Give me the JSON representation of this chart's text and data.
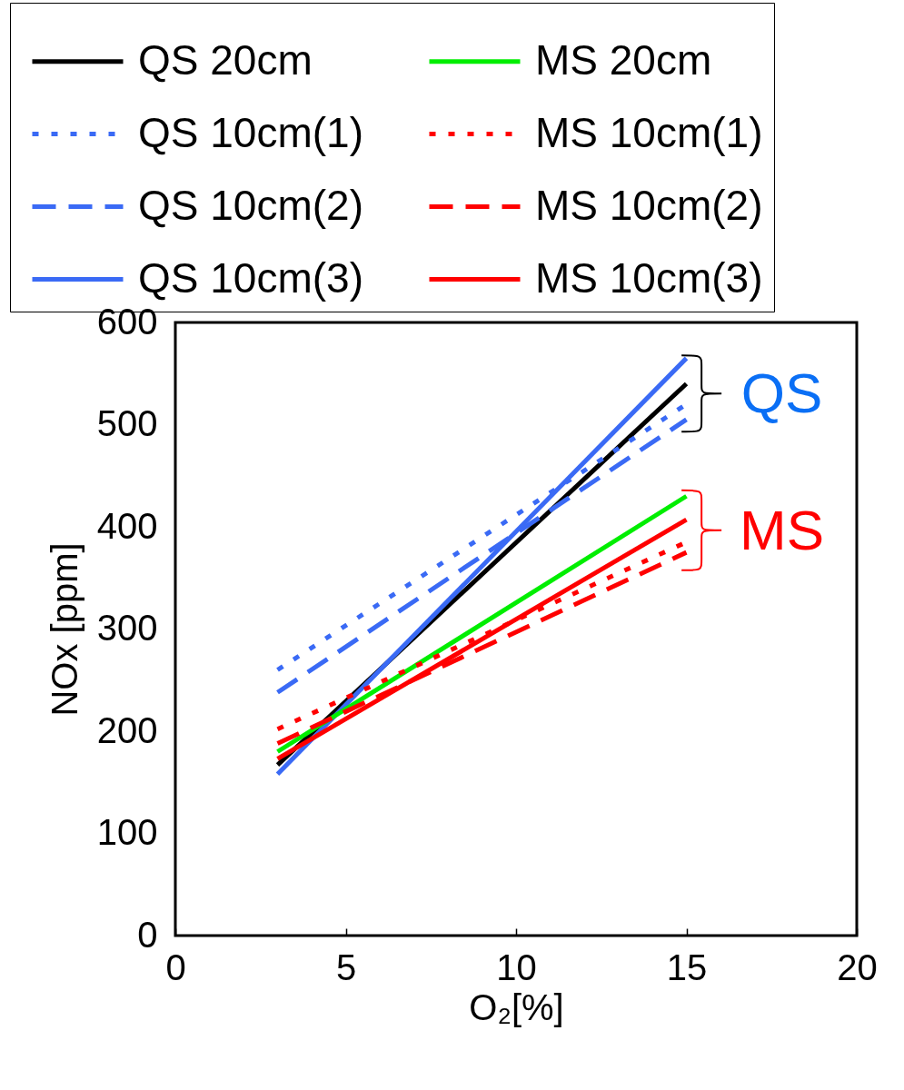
{
  "chart_data": {
    "type": "line",
    "xlabel": "O₂[%]",
    "ylabel": "NOx [ppm]",
    "x": [
      3,
      15
    ],
    "series": [
      {
        "name": "QS 20cm",
        "color": "#000000",
        "line_style": "solid",
        "values": [
          167,
          540
        ]
      },
      {
        "name": "QS 10cm(1)",
        "color": "#3a6af5",
        "line_style": "dotted",
        "values": [
          260,
          520
        ]
      },
      {
        "name": "QS 10cm(2)",
        "color": "#3a6af5",
        "line_style": "dashed",
        "values": [
          238,
          505
        ]
      },
      {
        "name": "QS 10cm(3)",
        "color": "#3a6af5",
        "line_style": "solid",
        "values": [
          158,
          565
        ]
      },
      {
        "name": "MS 20cm",
        "color": "#00ee00",
        "line_style": "solid",
        "values": [
          180,
          430
        ]
      },
      {
        "name": "MS 10cm(1)",
        "color": "#ff0000",
        "line_style": "dotted",
        "values": [
          202,
          385
        ]
      },
      {
        "name": "MS 10cm(2)",
        "color": "#ff0000",
        "line_style": "dashed",
        "values": [
          188,
          375
        ]
      },
      {
        "name": "MS 10cm(3)",
        "color": "#ff0000",
        "line_style": "solid",
        "values": [
          173,
          407
        ]
      }
    ],
    "xlim": [
      0,
      20
    ],
    "xticks": [
      0,
      5,
      10,
      15,
      20
    ],
    "ylim": [
      0,
      600
    ],
    "yticks": [
      0,
      100,
      200,
      300,
      400,
      500,
      600
    ],
    "grid": false,
    "legend": "top",
    "marker": "none",
    "annotations": [
      "QS",
      "MS"
    ]
  }
}
